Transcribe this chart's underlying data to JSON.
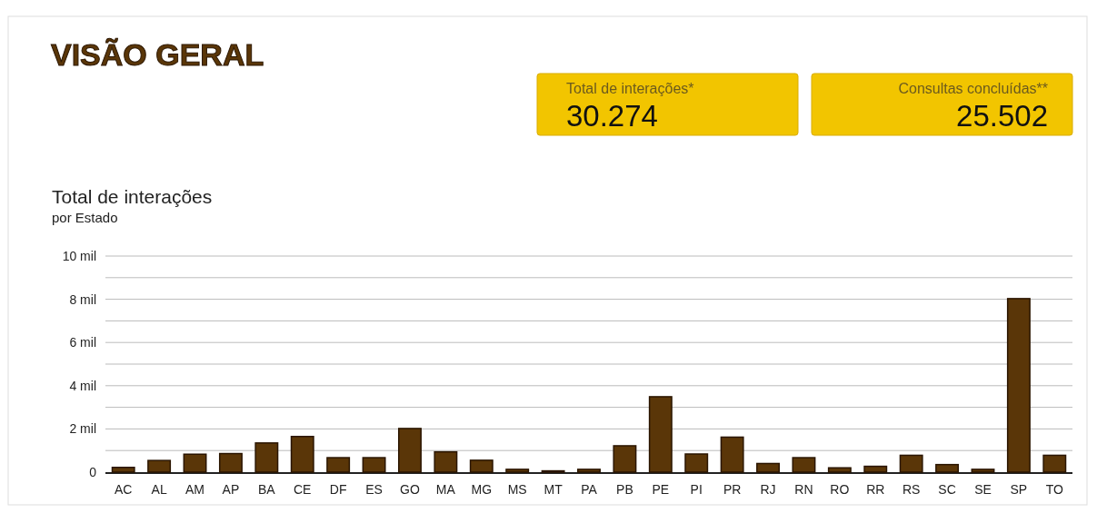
{
  "chart_data": {
    "type": "bar",
    "title": "Total de interações",
    "subtitle": "por Estado",
    "annotations": [
      "VISÃO GERAL",
      "Total de interações*",
      "30.274",
      "Consultas concluídas**",
      "25.502"
    ],
    "categories": [
      "AC",
      "AL",
      "AM",
      "AP",
      "BA",
      "CE",
      "DF",
      "ES",
      "GO",
      "MA",
      "MG",
      "MS",
      "MT",
      "PA",
      "PB",
      "PE",
      "PI",
      "PR",
      "RJ",
      "RN",
      "RO",
      "RR",
      "RS",
      "SC",
      "SE",
      "SP",
      "TO"
    ],
    "values": [
      0.22,
      0.54,
      0.83,
      0.86,
      1.35,
      1.65,
      0.67,
      0.67,
      2.02,
      0.94,
      0.55,
      0.13,
      0.06,
      0.13,
      1.22,
      3.49,
      0.84,
      1.62,
      0.4,
      0.67,
      0.2,
      0.27,
      0.78,
      0.35,
      0.13,
      8.03,
      0.78
    ],
    "color": "#5a3608",
    "ylim": [
      0,
      10
    ],
    "yticks": [
      0,
      {
        "value": 1,
        "label": null
      },
      {
        "value": 2,
        "label": "2 mil"
      },
      {
        "value": 3,
        "label": null
      },
      {
        "value": 4,
        "label": "4 mil"
      },
      {
        "value": 5,
        "label": null
      },
      {
        "value": 6,
        "label": "6 mil"
      },
      {
        "value": 7,
        "label": null
      },
      {
        "value": 8,
        "label": "8 mil"
      },
      {
        "value": 9,
        "label": null
      },
      {
        "value": 10,
        "label": "10 mil"
      }
    ],
    "grid": true
  }
}
